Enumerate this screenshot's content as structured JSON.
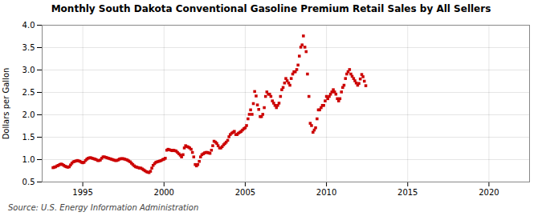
{
  "chart_data": {
    "type": "scatter",
    "title": "Monthly South Dakota Conventional Gasoline Premium Retail Sales by All Sellers",
    "ylabel": "Dollars per Gallon",
    "source": "Source: U.S. Energy Information Administration",
    "color": "#cc0000",
    "marker": "square",
    "grid": true,
    "xlim": [
      1992.5,
      2022.5
    ],
    "ylim": [
      0.5,
      4.0
    ],
    "xticks": [
      1995,
      2000,
      2005,
      2010,
      2015,
      2020
    ],
    "yticks": [
      0.5,
      {
        "value": 1.0,
        "label": "1.0"
      },
      1.5,
      {
        "value": 2.0,
        "label": "2.0"
      },
      2.5,
      {
        "value": 3.0,
        "label": "3.0"
      },
      3.5,
      {
        "value": 4.0,
        "label": "4.0"
      }
    ],
    "x": [
      1993.17,
      1993.25,
      1993.33,
      1993.42,
      1993.5,
      1993.58,
      1993.67,
      1993.75,
      1993.83,
      1993.92,
      1994.0,
      1994.08,
      1994.17,
      1994.25,
      1994.33,
      1994.42,
      1994.5,
      1994.58,
      1994.67,
      1994.75,
      1994.83,
      1994.92,
      1995.0,
      1995.08,
      1995.17,
      1995.25,
      1995.33,
      1995.42,
      1995.5,
      1995.58,
      1995.67,
      1995.75,
      1995.83,
      1995.92,
      1996.0,
      1996.08,
      1996.17,
      1996.25,
      1996.33,
      1996.42,
      1996.5,
      1996.58,
      1996.67,
      1996.75,
      1996.83,
      1996.92,
      1997.0,
      1997.08,
      1997.17,
      1997.25,
      1997.33,
      1997.42,
      1997.5,
      1997.58,
      1997.67,
      1997.75,
      1997.83,
      1997.92,
      1998.0,
      1998.08,
      1998.17,
      1998.25,
      1998.33,
      1998.42,
      1998.5,
      1998.58,
      1998.67,
      1998.75,
      1998.83,
      1998.92,
      1999.0,
      1999.08,
      1999.17,
      1999.25,
      1999.33,
      1999.42,
      1999.5,
      1999.58,
      1999.67,
      1999.75,
      1999.83,
      1999.92,
      2000.0,
      2000.08,
      2000.17,
      2000.25,
      2000.33,
      2000.42,
      2000.5,
      2000.58,
      2000.67,
      2000.75,
      2000.83,
      2000.92,
      2001.0,
      2001.08,
      2001.17,
      2001.25,
      2001.33,
      2001.42,
      2001.5,
      2001.58,
      2001.67,
      2001.75,
      2001.83,
      2001.92,
      2002.0,
      2002.08,
      2002.17,
      2002.25,
      2002.33,
      2002.42,
      2002.5,
      2002.58,
      2002.67,
      2002.75,
      2002.83,
      2002.92,
      2003.0,
      2003.08,
      2003.17,
      2003.25,
      2003.33,
      2003.42,
      2003.5,
      2003.58,
      2003.67,
      2003.75,
      2003.83,
      2003.92,
      2004.0,
      2004.08,
      2004.17,
      2004.25,
      2004.33,
      2004.42,
      2004.5,
      2004.58,
      2004.67,
      2004.75,
      2004.83,
      2004.92,
      2005.0,
      2005.08,
      2005.17,
      2005.25,
      2005.33,
      2005.42,
      2005.5,
      2005.58,
      2005.67,
      2005.75,
      2005.83,
      2005.92,
      2006.0,
      2006.08,
      2006.17,
      2006.25,
      2006.33,
      2006.42,
      2006.5,
      2006.58,
      2006.67,
      2006.75,
      2006.83,
      2006.92,
      2007.0,
      2007.08,
      2007.17,
      2007.25,
      2007.33,
      2007.42,
      2007.5,
      2007.58,
      2007.67,
      2007.75,
      2007.83,
      2007.92,
      2008.0,
      2008.08,
      2008.17,
      2008.25,
      2008.33,
      2008.42,
      2008.5,
      2008.58,
      2008.67,
      2008.75,
      2008.83,
      2008.92,
      2009.0,
      2009.08,
      2009.17,
      2009.25,
      2009.33,
      2009.42,
      2009.5,
      2009.58,
      2009.67,
      2009.75,
      2009.83,
      2009.92,
      2010.0,
      2010.08,
      2010.17,
      2010.25,
      2010.33,
      2010.42,
      2010.5,
      2010.58,
      2010.67,
      2010.75,
      2010.83,
      2010.92,
      2011.0,
      2011.08,
      2011.17,
      2011.25,
      2011.33,
      2011.42,
      2011.5,
      2011.58,
      2011.67,
      2011.75,
      2011.83,
      2011.92,
      2012.0,
      2012.08,
      2012.17,
      2012.25,
      2012.33,
      2012.42
    ],
    "values": [
      0.82,
      0.83,
      0.84,
      0.86,
      0.87,
      0.89,
      0.9,
      0.89,
      0.87,
      0.85,
      0.84,
      0.83,
      0.84,
      0.88,
      0.92,
      0.95,
      0.96,
      0.97,
      0.98,
      0.97,
      0.96,
      0.94,
      0.93,
      0.94,
      0.98,
      1.01,
      1.03,
      1.04,
      1.04,
      1.03,
      1.02,
      1.01,
      1.0,
      0.98,
      0.98,
      0.99,
      1.03,
      1.06,
      1.06,
      1.05,
      1.04,
      1.03,
      1.02,
      1.01,
      1.0,
      0.99,
      0.98,
      0.98,
      0.99,
      1.01,
      1.02,
      1.02,
      1.02,
      1.01,
      1.0,
      0.99,
      0.97,
      0.95,
      0.92,
      0.89,
      0.86,
      0.84,
      0.83,
      0.82,
      0.81,
      0.81,
      0.79,
      0.77,
      0.75,
      0.73,
      0.72,
      0.71,
      0.74,
      0.81,
      0.87,
      0.91,
      0.94,
      0.95,
      0.96,
      0.97,
      0.98,
      1.0,
      1.01,
      1.03,
      1.21,
      1.23,
      1.22,
      1.21,
      1.2,
      1.21,
      1.2,
      1.19,
      1.16,
      1.13,
      1.1,
      1.06,
      1.11,
      1.26,
      1.31,
      1.29,
      1.28,
      1.26,
      1.23,
      1.16,
      1.06,
      0.89,
      0.86,
      0.89,
      0.96,
      1.06,
      1.11,
      1.13,
      1.15,
      1.16,
      1.16,
      1.15,
      1.14,
      1.21,
      1.31,
      1.41,
      1.39,
      1.36,
      1.31,
      1.26,
      1.26,
      1.29,
      1.33,
      1.36,
      1.39,
      1.43,
      1.51,
      1.56,
      1.59,
      1.61,
      1.63,
      1.56,
      1.56,
      1.59,
      1.61,
      1.63,
      1.66,
      1.69,
      1.71,
      1.76,
      1.91,
      2.01,
      2.11,
      2.01,
      2.25,
      2.52,
      2.42,
      2.22,
      2.12,
      1.96,
      1.96,
      2.01,
      2.16,
      2.41,
      2.51,
      2.46,
      2.46,
      2.41,
      2.31,
      2.26,
      2.21,
      2.16,
      2.21,
      2.26,
      2.41,
      2.56,
      2.61,
      2.71,
      2.81,
      2.76,
      2.71,
      2.66,
      2.81,
      2.91,
      2.96,
      2.96,
      3.01,
      3.11,
      3.31,
      3.51,
      3.56,
      3.76,
      3.51,
      3.41,
      2.91,
      2.41,
      1.81,
      1.76,
      1.61,
      1.66,
      1.71,
      1.91,
      2.11,
      2.11,
      2.16,
      2.21,
      2.21,
      2.31,
      2.41,
      2.36,
      2.41,
      2.46,
      2.51,
      2.56,
      2.51,
      2.46,
      2.36,
      2.31,
      2.36,
      2.51,
      2.61,
      2.66,
      2.81,
      2.91,
      2.96,
      3.01,
      2.91,
      2.86,
      2.81,
      2.76,
      2.71,
      2.66,
      2.7,
      2.8,
      2.9,
      2.85,
      2.75,
      2.65
    ]
  }
}
